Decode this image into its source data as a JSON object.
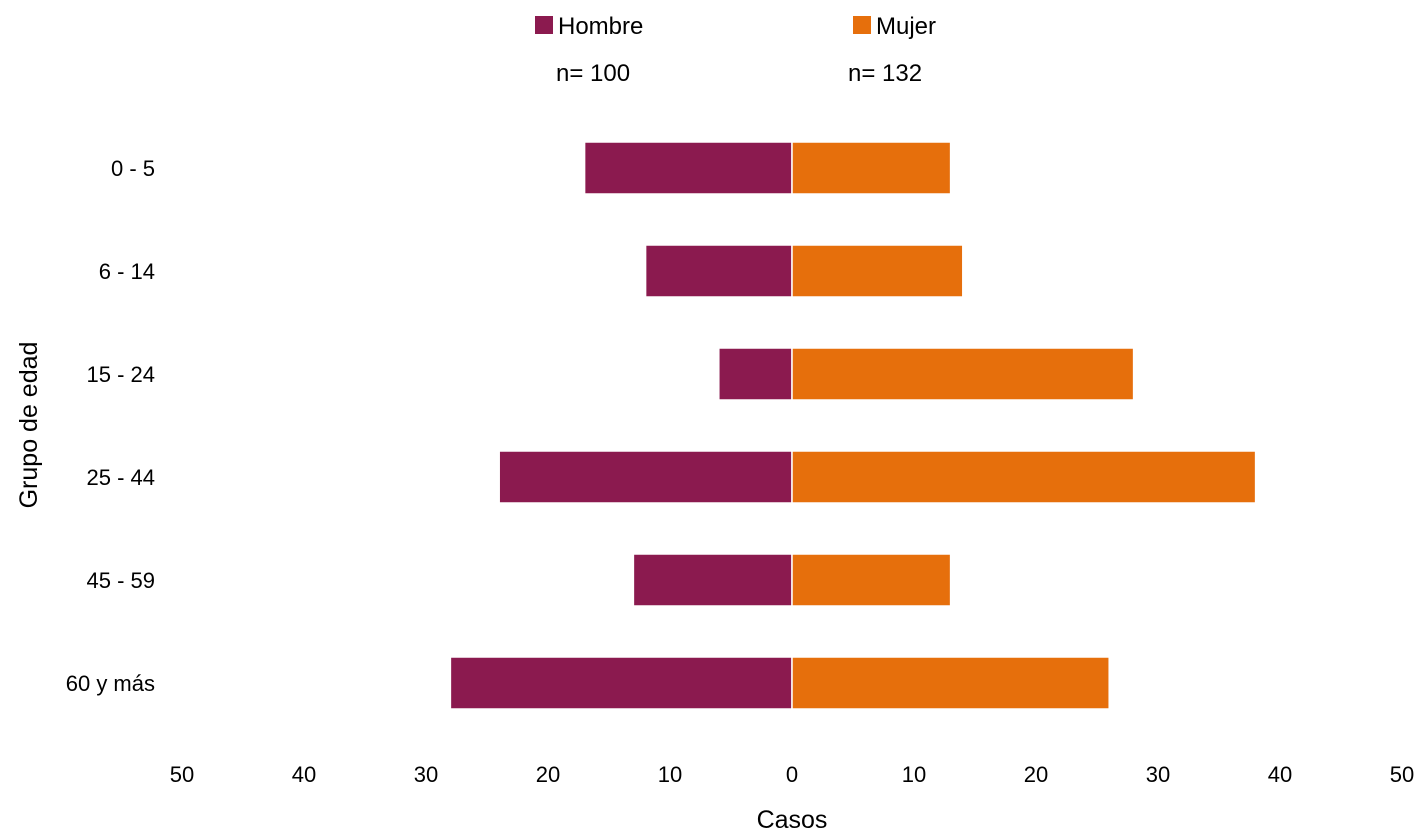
{
  "chart_data": {
    "type": "bar",
    "orientation": "horizontal",
    "layout": "population-pyramid",
    "title": "",
    "xlabel": "Casos",
    "ylabel": "Grupo de edad",
    "categories": [
      "0 - 5",
      "6 - 14",
      "15 - 24",
      "25 - 44",
      "45 - 59",
      "60 y más"
    ],
    "series": [
      {
        "name": "Hombre",
        "n_label": "n= 100",
        "side": "left",
        "color": "#8B1A4F",
        "values": [
          17,
          12,
          6,
          24,
          13,
          28
        ]
      },
      {
        "name": "Mujer",
        "n_label": "n= 132",
        "side": "right",
        "color": "#E66F0C",
        "values": [
          13,
          14,
          28,
          38,
          13,
          26
        ]
      }
    ],
    "xlim": [
      -50,
      50
    ],
    "x_ticks": [
      {
        "value": -50,
        "label": "50"
      },
      {
        "value": -40,
        "label": "40"
      },
      {
        "value": -30,
        "label": "30"
      },
      {
        "value": -20,
        "label": "20"
      },
      {
        "value": -10,
        "label": "10"
      },
      {
        "value": 0,
        "label": "0"
      },
      {
        "value": 10,
        "label": "10"
      },
      {
        "value": 20,
        "label": "20"
      },
      {
        "value": 30,
        "label": "30"
      },
      {
        "value": 40,
        "label": "40"
      },
      {
        "value": 50,
        "label": "50"
      }
    ],
    "grid": false,
    "legend_position": "top-center"
  }
}
